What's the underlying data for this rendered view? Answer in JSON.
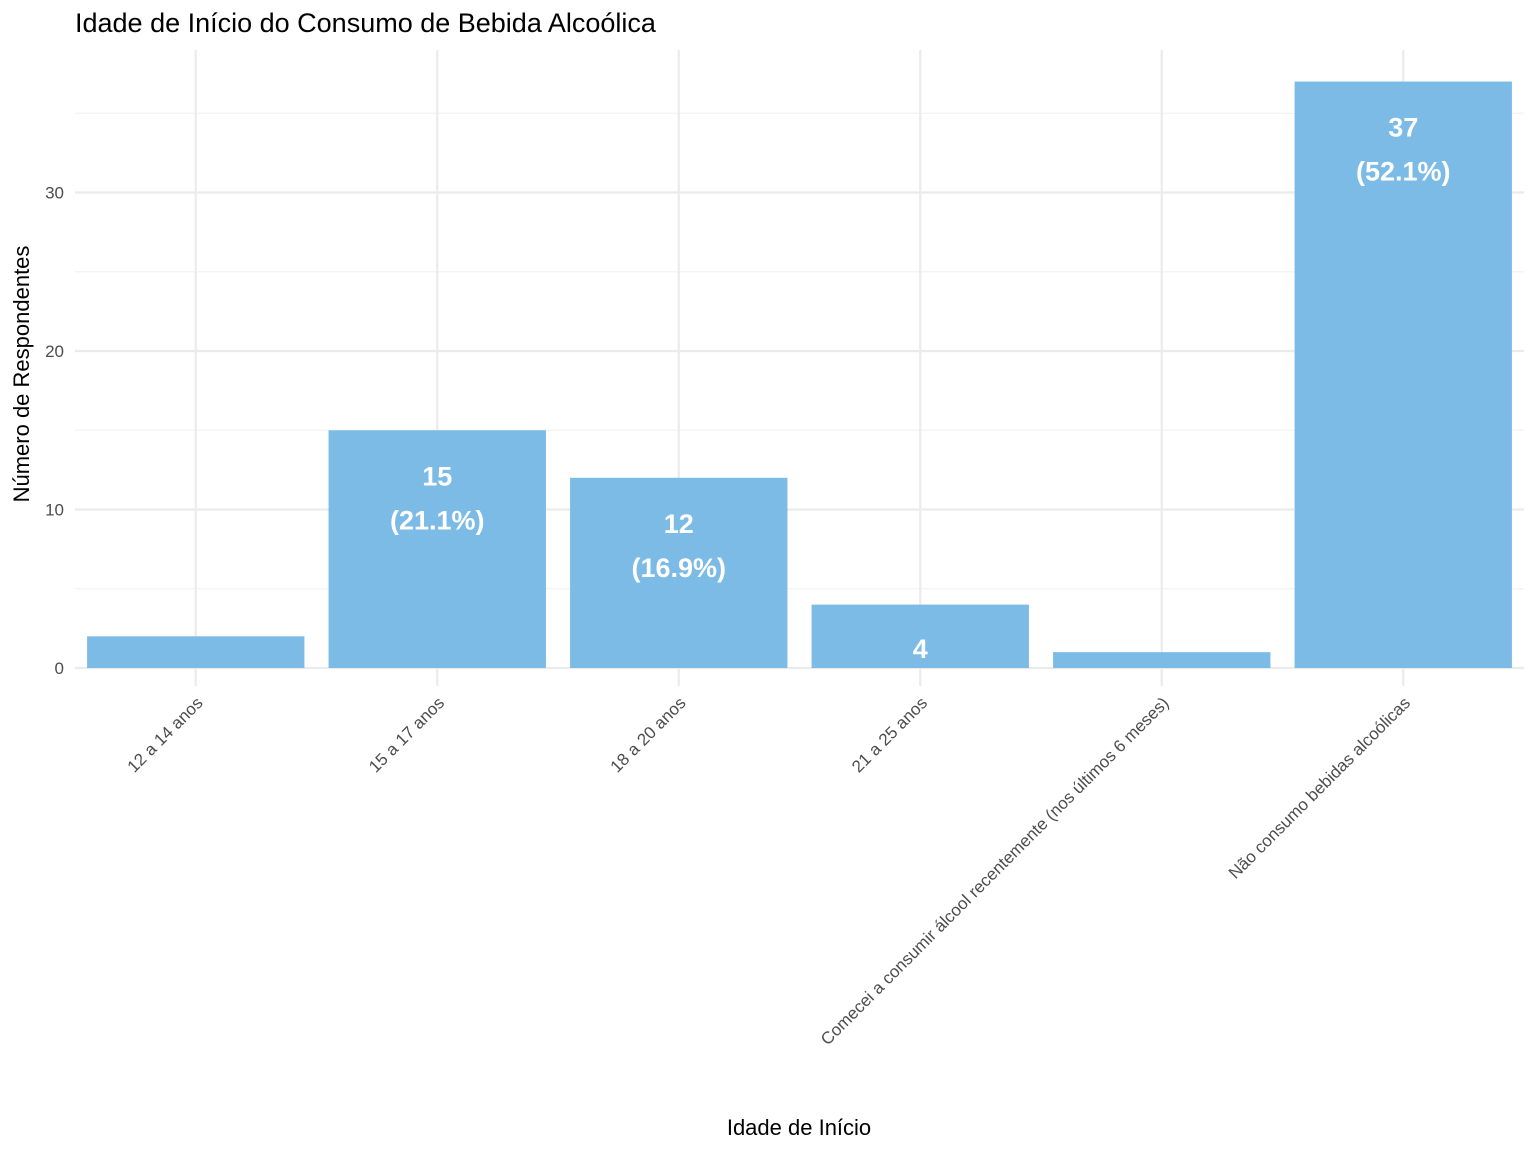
{
  "chart_data": {
    "type": "bar",
    "title": "Idade de Início do Consumo de Bebida Alcoólica",
    "xlabel": "Idade de Início",
    "ylabel": "Número de Respondentes",
    "categories": [
      "12 a 14 anos",
      "15 a 17 anos",
      "18 a 20 anos",
      "21 a 25 anos",
      "Comecei a consumir álcool recentemente (nos últimos 6 meses)",
      "Não consumo bebidas alcoólicas"
    ],
    "values": [
      2,
      15,
      12,
      4,
      1,
      37
    ],
    "data_labels": [
      {
        "count": "",
        "percent": ""
      },
      {
        "count": "15",
        "percent": "(21.1%)"
      },
      {
        "count": "12",
        "percent": "(16.9%)"
      },
      {
        "count": "4",
        "percent": ""
      },
      {
        "count": "",
        "percent": ""
      },
      {
        "count": "37",
        "percent": "(52.1%)"
      }
    ],
    "ylim": [
      0,
      37
    ],
    "yticks": [
      0,
      10,
      20,
      30
    ],
    "ytick_labels": [
      "0",
      "10",
      "20",
      "30"
    ],
    "grid": true,
    "legend": "none",
    "bar_color": "#7cbbe6"
  }
}
